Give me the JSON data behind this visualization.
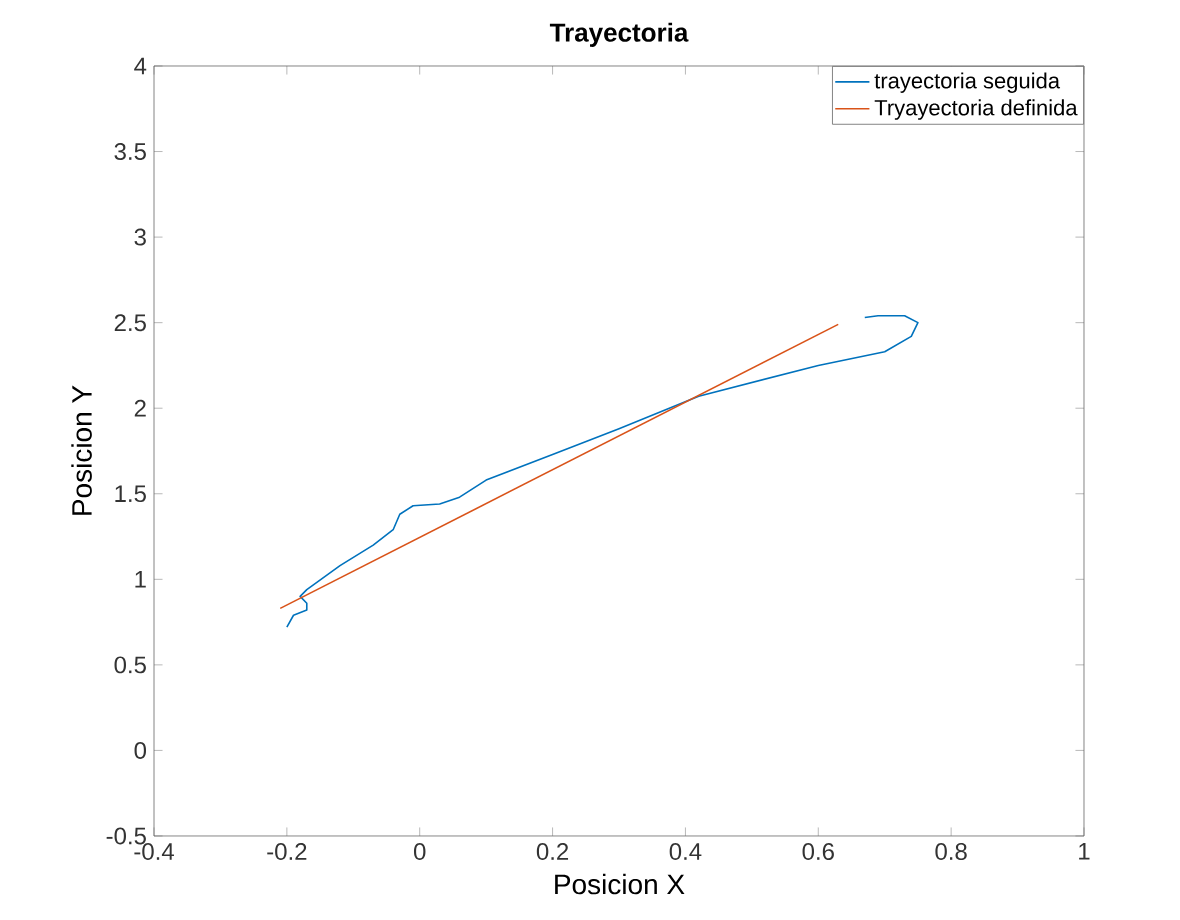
{
  "chart_data": {
    "type": "line",
    "title": "Trayectoria",
    "xlabel": "Posicion X",
    "ylabel": "Posicion Y",
    "xlim": [
      -0.4,
      1
    ],
    "ylim": [
      -0.5,
      4
    ],
    "xticks": [
      -0.4,
      -0.2,
      0,
      0.2,
      0.4,
      0.6,
      0.8,
      1
    ],
    "yticks": [
      -0.5,
      0,
      0.5,
      1,
      1.5,
      2,
      2.5,
      3,
      3.5,
      4
    ],
    "legend": "top right",
    "grid": false,
    "series": [
      {
        "name": "trayectoria seguida",
        "color": "#0072bd",
        "x": [
          -0.2,
          -0.19,
          -0.17,
          -0.17,
          -0.18,
          -0.17,
          -0.12,
          -0.07,
          -0.04,
          -0.03,
          -0.01,
          0.03,
          0.06,
          0.1,
          0.2,
          0.3,
          0.42,
          0.6,
          0.7,
          0.74,
          0.75,
          0.73,
          0.69,
          0.67
        ],
        "values": [
          0.72,
          0.79,
          0.82,
          0.86,
          0.9,
          0.94,
          1.08,
          1.2,
          1.29,
          1.38,
          1.43,
          1.44,
          1.48,
          1.58,
          1.73,
          1.88,
          2.07,
          2.25,
          2.33,
          2.42,
          2.5,
          2.54,
          2.54,
          2.53
        ]
      },
      {
        "name": "Tryayectoria definida",
        "color": "#d95319",
        "x": [
          -0.21,
          0.63
        ],
        "values": [
          0.83,
          2.49
        ]
      }
    ]
  }
}
